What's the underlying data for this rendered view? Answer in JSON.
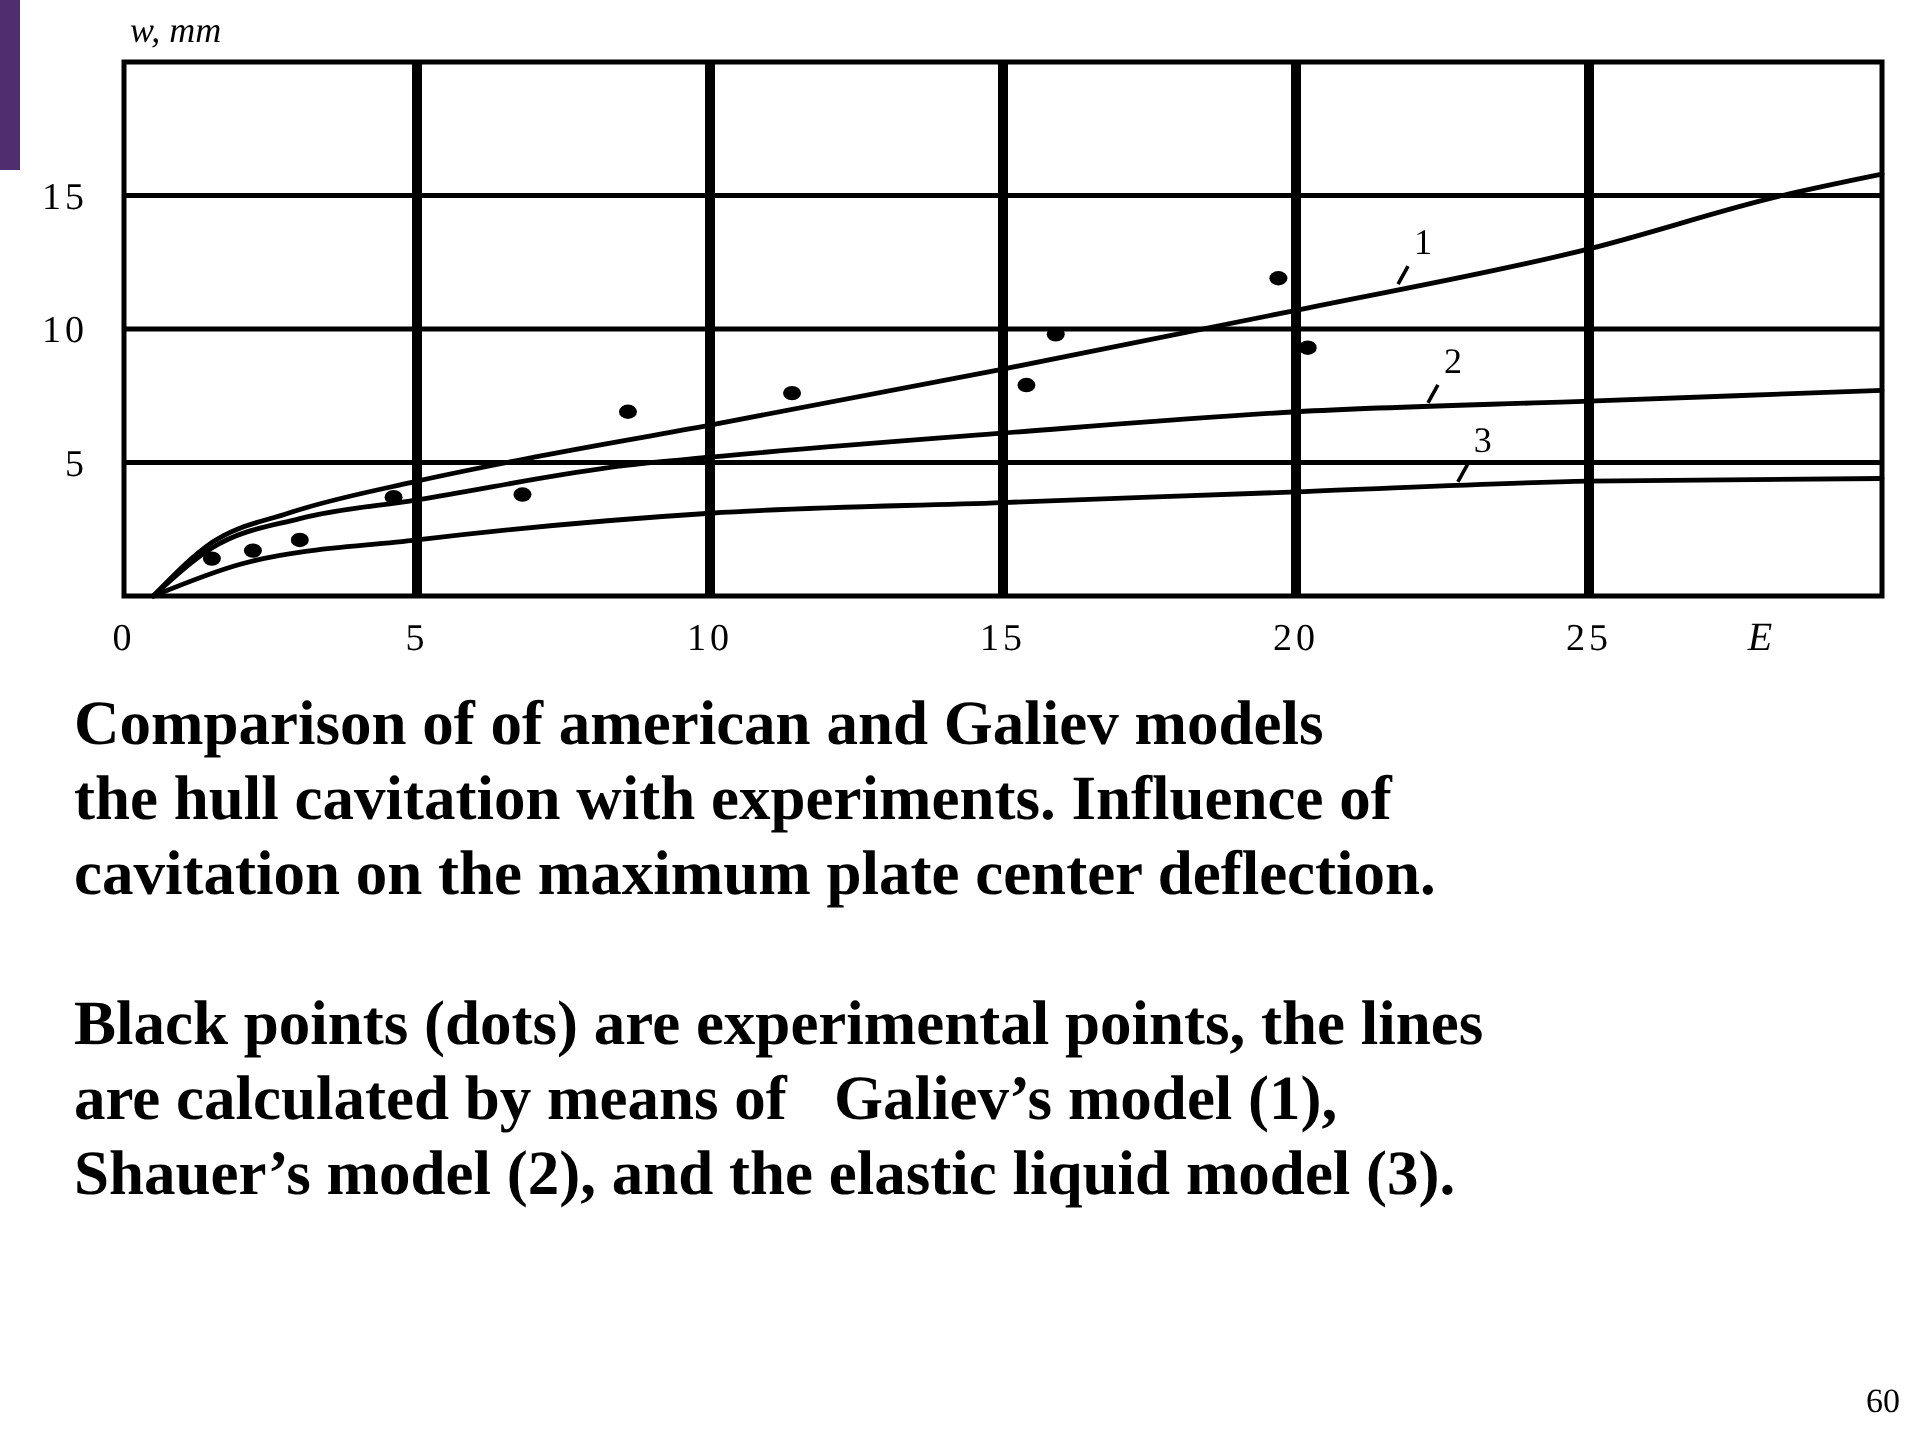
{
  "chart_data": {
    "type": "line",
    "xlabel": "E",
    "ylabel": "w, mm",
    "xlim": [
      0,
      30
    ],
    "ylim": [
      0,
      20
    ],
    "xticks": [
      0,
      5,
      10,
      15,
      20,
      25
    ],
    "yticks": [
      5,
      10,
      15
    ],
    "grid": true,
    "series": [
      {
        "name": "1",
        "color": "#000000",
        "x": [
          0.5,
          1.5,
          2.8,
          5,
          7,
          10,
          15,
          20,
          25,
          28.3,
          30
        ],
        "values": [
          0,
          2.0,
          3.1,
          4.3,
          5.2,
          6.4,
          8.5,
          10.7,
          13.0,
          15,
          15.8
        ]
      },
      {
        "name": "2",
        "color": "#000000",
        "x": [
          0.5,
          1.5,
          3,
          5,
          8.6,
          10,
          15,
          20,
          25,
          30
        ],
        "values": [
          0,
          1.8,
          2.9,
          3.6,
          4.9,
          5.2,
          6.1,
          6.9,
          7.3,
          7.7
        ]
      },
      {
        "name": "3",
        "color": "#000000",
        "x": [
          0.5,
          2,
          5,
          10,
          15,
          20,
          25,
          30
        ],
        "values": [
          0,
          1.2,
          2.1,
          3.1,
          3.5,
          3.9,
          4.3,
          4.4
        ]
      },
      {
        "type": "scatter",
        "color": "#000000",
        "x": [
          1.5,
          2.2,
          3.0,
          4.6,
          6.8,
          8.6,
          11.4,
          15.4,
          15.9,
          19.7,
          20.2
        ],
        "values": [
          1.4,
          1.7,
          2.1,
          3.7,
          3.8,
          6.9,
          7.6,
          7.9,
          9.8,
          11.9,
          9.3
        ]
      }
    ],
    "annotations": [
      "Comparison of of american and Galiev models\nthe hull cavitation with experiments. Influence of\ncavitation on the maximum plate center deflection.",
      "Black points (dots) are experimental points, the lines\nare calculated by means of   Galiev’s model (1),\nShauer’s model (2), and the elastic liquid model (3).",
      "60"
    ]
  }
}
